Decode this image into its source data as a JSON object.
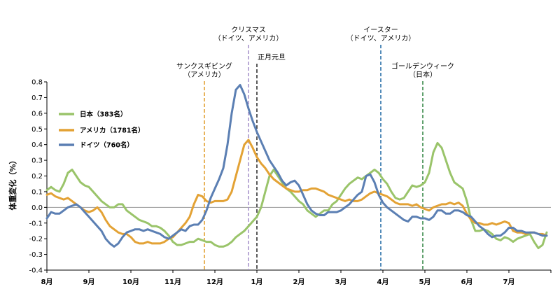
{
  "chart_data": {
    "type": "line",
    "ylabel": "体重変化（%）",
    "xlabel": "",
    "ylim": [
      -0.4,
      0.8
    ],
    "yticks": [
      "-0.4",
      "-0.3",
      "-0.2",
      "-0.1",
      "0.0",
      "0.1",
      "0.2",
      "0.3",
      "0.4",
      "0.5",
      "0.6",
      "0.7",
      "0.8"
    ],
    "xlim": [
      0,
      12
    ],
    "month_labels": [
      "8月",
      "9月",
      "10月",
      "11月",
      "12月",
      "1月",
      "2月",
      "3月",
      "4月",
      "5月",
      "6月",
      "7月"
    ],
    "legend_position": "top-left",
    "series": [
      {
        "name": "日本（383名）",
        "color": "#9ac46a",
        "x": [
          0,
          0.1,
          0.2,
          0.3,
          0.4,
          0.5,
          0.6,
          0.7,
          0.8,
          0.9,
          1.0,
          1.1,
          1.2,
          1.3,
          1.4,
          1.5,
          1.6,
          1.7,
          1.8,
          1.9,
          2.0,
          2.1,
          2.2,
          2.3,
          2.4,
          2.5,
          2.6,
          2.7,
          2.8,
          2.9,
          3.0,
          3.1,
          3.2,
          3.3,
          3.4,
          3.5,
          3.6,
          3.7,
          3.8,
          3.9,
          4.0,
          4.1,
          4.2,
          4.3,
          4.4,
          4.5,
          4.6,
          4.7,
          4.8,
          4.9,
          5.0,
          5.1,
          5.2,
          5.3,
          5.4,
          5.5,
          5.6,
          5.7,
          5.8,
          5.9,
          6.0,
          6.1,
          6.2,
          6.3,
          6.4,
          6.5,
          6.6,
          6.7,
          6.8,
          6.9,
          7.0,
          7.1,
          7.2,
          7.3,
          7.4,
          7.5,
          7.6,
          7.7,
          7.8,
          7.9,
          8.0,
          8.1,
          8.2,
          8.3,
          8.4,
          8.5,
          8.6,
          8.7,
          8.8,
          8.9,
          9.0,
          9.1,
          9.2,
          9.3,
          9.4,
          9.5,
          9.6,
          9.7,
          9.8,
          9.9,
          10.0,
          10.1,
          10.2,
          10.3,
          10.4,
          10.5,
          10.6,
          10.7,
          10.8,
          10.9,
          11.0,
          11.1,
          11.2,
          11.3,
          11.4,
          11.5,
          11.6,
          11.7,
          11.8,
          11.9
        ],
        "values": [
          0.11,
          0.13,
          0.11,
          0.1,
          0.15,
          0.22,
          0.24,
          0.2,
          0.16,
          0.14,
          0.13,
          0.1,
          0.07,
          0.04,
          0.02,
          0.0,
          0.0,
          0.02,
          0.02,
          -0.02,
          -0.04,
          -0.06,
          -0.08,
          -0.09,
          -0.1,
          -0.12,
          -0.12,
          -0.13,
          -0.15,
          -0.18,
          -0.22,
          -0.24,
          -0.24,
          -0.23,
          -0.22,
          -0.22,
          -0.2,
          -0.21,
          -0.22,
          -0.22,
          -0.24,
          -0.25,
          -0.25,
          -0.24,
          -0.22,
          -0.19,
          -0.17,
          -0.15,
          -0.12,
          -0.09,
          -0.06,
          0.0,
          0.1,
          0.2,
          0.24,
          0.2,
          0.16,
          0.12,
          0.1,
          0.07,
          0.04,
          0.02,
          -0.02,
          -0.04,
          -0.06,
          -0.04,
          -0.02,
          -0.02,
          0.02,
          0.04,
          0.08,
          0.12,
          0.15,
          0.17,
          0.19,
          0.18,
          0.2,
          0.22,
          0.24,
          0.22,
          0.18,
          0.15,
          0.1,
          0.06,
          0.05,
          0.06,
          0.1,
          0.14,
          0.13,
          0.14,
          0.16,
          0.22,
          0.35,
          0.41,
          0.38,
          0.3,
          0.22,
          0.16,
          0.14,
          0.12,
          0.04,
          -0.08,
          -0.15,
          -0.15,
          -0.14,
          -0.15,
          -0.17,
          -0.2,
          -0.21,
          -0.19,
          -0.2,
          -0.22,
          -0.2,
          -0.19,
          -0.18,
          -0.17,
          -0.22,
          -0.26,
          -0.24,
          -0.16
        ]
      },
      {
        "name": "アメリカ（1781名）",
        "color": "#e3a235",
        "x": [
          0,
          0.1,
          0.2,
          0.3,
          0.4,
          0.5,
          0.6,
          0.7,
          0.8,
          0.9,
          1.0,
          1.1,
          1.2,
          1.3,
          1.4,
          1.5,
          1.6,
          1.7,
          1.8,
          1.9,
          2.0,
          2.1,
          2.2,
          2.3,
          2.4,
          2.5,
          2.6,
          2.7,
          2.8,
          2.9,
          3.0,
          3.1,
          3.2,
          3.3,
          3.4,
          3.5,
          3.6,
          3.7,
          3.8,
          3.9,
          4.0,
          4.1,
          4.2,
          4.3,
          4.4,
          4.5,
          4.6,
          4.7,
          4.8,
          4.9,
          5.0,
          5.1,
          5.2,
          5.3,
          5.4,
          5.5,
          5.6,
          5.7,
          5.8,
          5.9,
          6.0,
          6.1,
          6.2,
          6.3,
          6.4,
          6.5,
          6.6,
          6.7,
          6.8,
          6.9,
          7.0,
          7.1,
          7.2,
          7.3,
          7.4,
          7.5,
          7.6,
          7.7,
          7.8,
          7.9,
          8.0,
          8.1,
          8.2,
          8.3,
          8.4,
          8.5,
          8.6,
          8.7,
          8.8,
          8.9,
          9.0,
          9.1,
          9.2,
          9.3,
          9.4,
          9.5,
          9.6,
          9.7,
          9.8,
          9.9,
          10.0,
          10.1,
          10.2,
          10.3,
          10.4,
          10.5,
          10.6,
          10.7,
          10.8,
          10.9,
          11.0,
          11.1,
          11.2,
          11.3,
          11.4,
          11.5,
          11.6,
          11.7,
          11.8,
          11.9
        ],
        "values": [
          0.08,
          0.09,
          0.07,
          0.06,
          0.05,
          0.06,
          0.04,
          0.02,
          0.0,
          -0.02,
          -0.03,
          -0.02,
          0.0,
          -0.03,
          -0.08,
          -0.12,
          -0.14,
          -0.16,
          -0.17,
          -0.17,
          -0.19,
          -0.22,
          -0.23,
          -0.23,
          -0.22,
          -0.23,
          -0.23,
          -0.23,
          -0.22,
          -0.2,
          -0.19,
          -0.16,
          -0.13,
          -0.1,
          -0.06,
          0.02,
          0.08,
          0.07,
          0.04,
          0.03,
          0.04,
          0.04,
          0.04,
          0.05,
          0.1,
          0.2,
          0.3,
          0.4,
          0.43,
          0.38,
          0.32,
          0.28,
          0.25,
          0.21,
          0.18,
          0.16,
          0.14,
          0.12,
          0.11,
          0.1,
          0.1,
          0.11,
          0.11,
          0.12,
          0.12,
          0.11,
          0.1,
          0.08,
          0.07,
          0.06,
          0.05,
          0.04,
          0.05,
          0.04,
          0.04,
          0.05,
          0.07,
          0.09,
          0.1,
          0.09,
          0.08,
          0.07,
          0.05,
          0.03,
          0.02,
          0.02,
          0.02,
          0.01,
          0.02,
          0.0,
          -0.01,
          -0.02,
          0.0,
          0.01,
          0.02,
          0.02,
          0.03,
          0.02,
          0.03,
          0.01,
          -0.04,
          -0.08,
          -0.1,
          -0.1,
          -0.11,
          -0.11,
          -0.1,
          -0.11,
          -0.1,
          -0.09,
          -0.1,
          -0.15,
          -0.16,
          -0.16,
          -0.17,
          -0.16,
          -0.16,
          -0.17,
          -0.17,
          -0.18
        ]
      },
      {
        "name": "ドイツ（760名）",
        "color": "#5b7fb3",
        "x": [
          0,
          0.1,
          0.2,
          0.3,
          0.4,
          0.5,
          0.6,
          0.7,
          0.8,
          0.9,
          1.0,
          1.1,
          1.2,
          1.3,
          1.4,
          1.5,
          1.6,
          1.7,
          1.8,
          1.9,
          2.0,
          2.1,
          2.2,
          2.3,
          2.4,
          2.5,
          2.6,
          2.7,
          2.8,
          2.9,
          3.0,
          3.1,
          3.2,
          3.3,
          3.4,
          3.5,
          3.6,
          3.7,
          3.8,
          3.9,
          4.0,
          4.1,
          4.2,
          4.3,
          4.4,
          4.5,
          4.6,
          4.7,
          4.8,
          4.9,
          5.0,
          5.1,
          5.2,
          5.3,
          5.4,
          5.5,
          5.6,
          5.7,
          5.8,
          5.9,
          6.0,
          6.1,
          6.2,
          6.3,
          6.4,
          6.5,
          6.6,
          6.7,
          6.8,
          6.9,
          7.0,
          7.1,
          7.2,
          7.3,
          7.4,
          7.5,
          7.6,
          7.7,
          7.8,
          7.9,
          8.0,
          8.1,
          8.2,
          8.3,
          8.4,
          8.5,
          8.6,
          8.7,
          8.8,
          8.9,
          9.0,
          9.1,
          9.2,
          9.3,
          9.4,
          9.5,
          9.6,
          9.7,
          9.8,
          9.9,
          10.0,
          10.1,
          10.2,
          10.3,
          10.4,
          10.5,
          10.6,
          10.7,
          10.8,
          10.9,
          11.0,
          11.1,
          11.2,
          11.3,
          11.4,
          11.5,
          11.6,
          11.7,
          11.8,
          11.9
        ],
        "values": [
          -0.07,
          -0.03,
          -0.04,
          -0.04,
          -0.02,
          0.0,
          0.01,
          0.02,
          0.0,
          -0.03,
          -0.06,
          -0.09,
          -0.12,
          -0.15,
          -0.2,
          -0.23,
          -0.25,
          -0.23,
          -0.19,
          -0.16,
          -0.15,
          -0.14,
          -0.14,
          -0.15,
          -0.14,
          -0.15,
          -0.16,
          -0.17,
          -0.19,
          -0.2,
          -0.18,
          -0.16,
          -0.14,
          -0.15,
          -0.12,
          -0.11,
          -0.11,
          -0.08,
          -0.02,
          0.06,
          0.12,
          0.18,
          0.25,
          0.4,
          0.6,
          0.75,
          0.78,
          0.72,
          0.63,
          0.55,
          0.48,
          0.42,
          0.36,
          0.3,
          0.26,
          0.22,
          0.17,
          0.14,
          0.16,
          0.17,
          0.14,
          0.08,
          0.02,
          -0.02,
          -0.04,
          -0.05,
          -0.05,
          -0.03,
          -0.03,
          -0.03,
          -0.02,
          0.0,
          0.02,
          0.05,
          0.08,
          0.1,
          0.2,
          0.21,
          0.16,
          0.08,
          0.03,
          0.0,
          -0.02,
          -0.04,
          -0.06,
          -0.08,
          -0.09,
          -0.06,
          -0.06,
          -0.07,
          -0.07,
          -0.08,
          -0.06,
          -0.02,
          -0.02,
          -0.04,
          -0.04,
          -0.02,
          -0.02,
          -0.03,
          -0.05,
          -0.06,
          -0.09,
          -0.12,
          -0.14,
          -0.17,
          -0.19,
          -0.18,
          -0.18,
          -0.16,
          -0.13,
          -0.13,
          -0.15,
          -0.15,
          -0.16,
          -0.16,
          -0.16,
          -0.17,
          -0.18,
          -0.18
        ]
      }
    ],
    "events": [
      {
        "label": [
          "サンクスギビング",
          "（アメリカ）"
        ],
        "x": 3.75,
        "color": "#e3a235"
      },
      {
        "label": [
          "クリスマス",
          "（ドイツ、アメリカ）"
        ],
        "x": 4.8,
        "color": "#a894cc"
      },
      {
        "label": [
          "正月元旦"
        ],
        "x": 5.0,
        "color": "#333333"
      },
      {
        "label": [
          "イースター",
          "（ドイツ、アメリカ）"
        ],
        "x": 7.95,
        "color": "#2a6fa8"
      },
      {
        "label": [
          "ゴールデンウィーク",
          "（日本）"
        ],
        "x": 8.95,
        "color": "#3a8a4a"
      }
    ]
  }
}
